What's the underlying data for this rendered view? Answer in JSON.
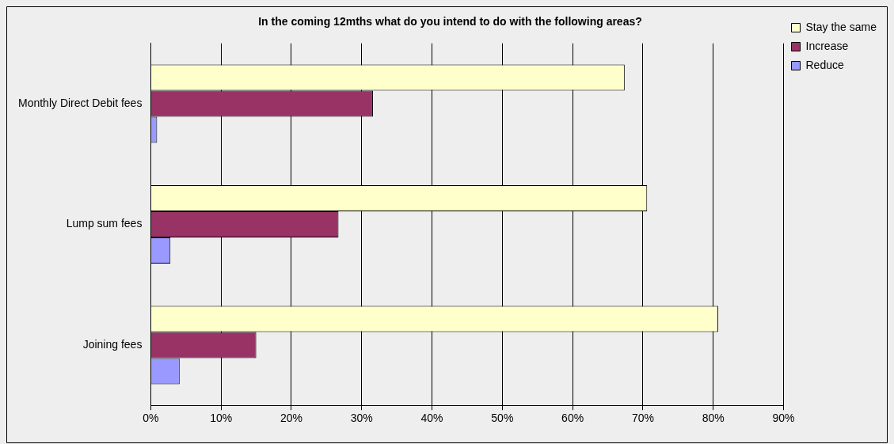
{
  "chart_data": {
    "type": "bar",
    "orientation": "horizontal",
    "title": "In the coming 12mths what do you intend to do with the following areas?",
    "categories": [
      "Monthly Direct Debit fees",
      "Lump sum fees",
      "Joining fees"
    ],
    "series": [
      {
        "name": "Stay the same",
        "color": "#ffffcc",
        "values": [
          67.4,
          70.6,
          80.7
        ]
      },
      {
        "name": "Increase",
        "color": "#993366",
        "values": [
          31.6,
          26.7,
          15.0
        ]
      },
      {
        "name": "Reduce",
        "color": "#9999ff",
        "values": [
          0.9,
          2.8,
          4.1
        ]
      }
    ],
    "xlim": [
      0,
      90
    ],
    "xticks": [
      {
        "value": 0,
        "label": "0%"
      },
      {
        "value": 10,
        "label": "10%"
      },
      {
        "value": 20,
        "label": "20%"
      },
      {
        "value": 30,
        "label": "30%"
      },
      {
        "value": 40,
        "label": "40%"
      },
      {
        "value": 50,
        "label": "50%"
      },
      {
        "value": 60,
        "label": "60%"
      },
      {
        "value": 70,
        "label": "70%"
      },
      {
        "value": 80,
        "label": "80%"
      },
      {
        "value": 90,
        "label": "90%"
      }
    ],
    "grid": "x",
    "legend": "top right"
  }
}
